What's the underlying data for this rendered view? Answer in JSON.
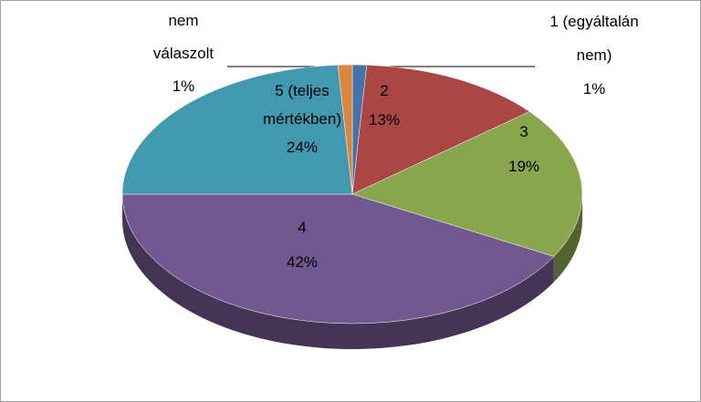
{
  "chart_data": {
    "type": "pie",
    "categories": [
      "1 (egyáltalán nem)",
      "2",
      "3",
      "4",
      "5 (teljes mértékben)",
      "nem válaszolt"
    ],
    "values": [
      1,
      13,
      19,
      42,
      24,
      1
    ],
    "value_labels": [
      "1%",
      "13%",
      "19%",
      "42%",
      "24%",
      "1%"
    ],
    "colors": [
      "#4572a7",
      "#aa4643",
      "#89a54e",
      "#71588f",
      "#4198af",
      "#db843d"
    ]
  }
}
